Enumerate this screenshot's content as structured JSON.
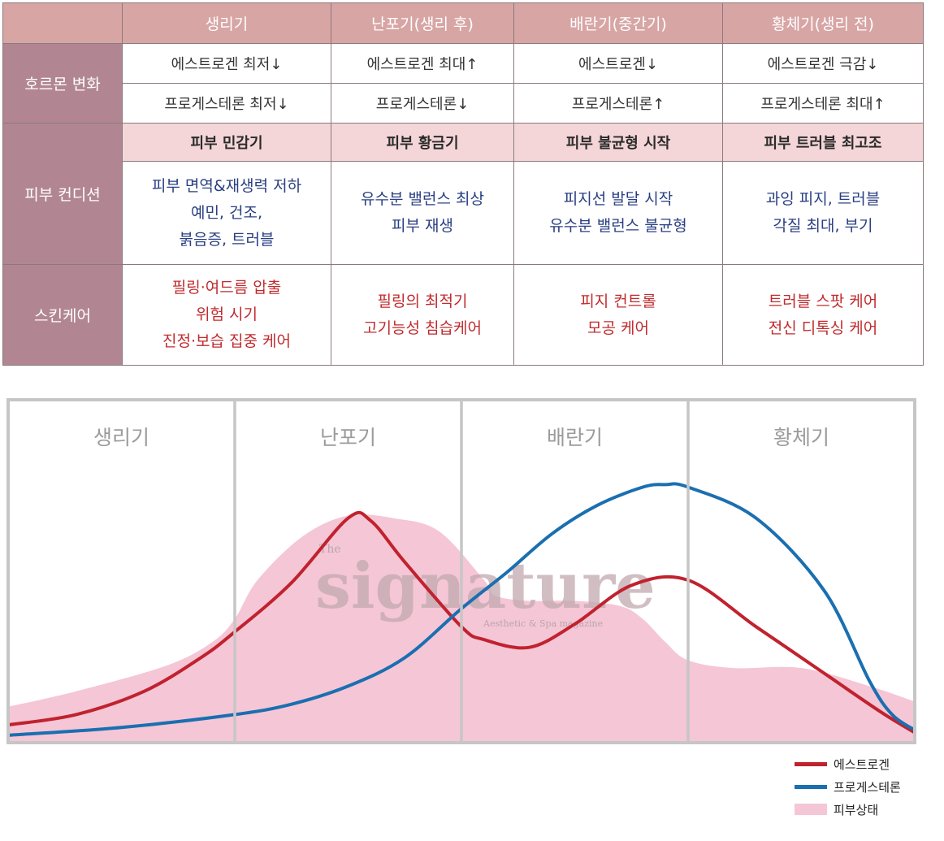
{
  "table": {
    "phase_headers": [
      "생리기",
      "난포기(생리 후)",
      "배란기(중간기)",
      "황체기(생리 전)"
    ],
    "row_labels": {
      "hormone": "호르몬 변화",
      "skin": "피부 컨디션",
      "care": "스킨케어"
    },
    "estrogen_row": [
      "에스트로겐 최저↓",
      "에스트로겐 최대↑",
      "에스트로겐↓",
      "에스트로겐 극감↓"
    ],
    "progesterone_row": [
      "프로게스테론 최저↓",
      "프로게스테론↓",
      "프로게스테론↑",
      "프로게스테론 최대↑"
    ],
    "skin_phase_names": [
      "피부 민감기",
      "피부 황금기",
      "피부 불균형 시작",
      "피부 트러블 최고조"
    ],
    "skin_conditions": [
      [
        "피부 면역&재생력 저하",
        "예민, 건조,",
        "붉음증, 트러블"
      ],
      [
        "유수분 밸런스 최상",
        "피부 재생"
      ],
      [
        "피지선 발달 시작",
        "유수분 밸런스 불균형"
      ],
      [
        "과잉 피지, 트러블",
        "각질 최대, 부기"
      ]
    ],
    "skincare": [
      [
        "필링·여드름 압출",
        "위험 시기",
        "진정·보습 집중 케어"
      ],
      [
        "필링의 최적기",
        "고기능성 침습케어"
      ],
      [
        "피지 컨트롤",
        "모공 케어"
      ],
      [
        "트러블 스팟 케어",
        "전신 디톡싱 케어"
      ]
    ]
  },
  "chart_data": {
    "type": "area",
    "title": "",
    "xlabel": "",
    "ylabel": "",
    "xlim": [
      0,
      4
    ],
    "ylim": [
      0,
      100
    ],
    "phases": [
      "생리기",
      "난포기",
      "배란기",
      "황체기"
    ],
    "grid": true,
    "watermark": {
      "small": "The",
      "big": "signature",
      "sub": "Aesthetic & Spa magazine"
    },
    "series": [
      {
        "name": "에스트로겐",
        "kind": "line",
        "color": "#c0222e",
        "x": [
          0,
          0.3,
          0.6,
          0.85,
          1.0,
          1.25,
          1.5,
          1.6,
          1.75,
          2.0,
          2.1,
          2.3,
          2.5,
          2.75,
          3.0,
          3.3,
          3.6,
          3.85,
          4.0
        ],
        "y": [
          5,
          9,
          18,
          31,
          41,
          60,
          85,
          84,
          68,
          43,
          38,
          35,
          44,
          59,
          61,
          43,
          25,
          10,
          2
        ]
      },
      {
        "name": "프로게스테론",
        "kind": "line",
        "color": "#1a6fb0",
        "x": [
          0,
          0.5,
          1.0,
          1.25,
          1.5,
          1.75,
          2.0,
          2.2,
          2.4,
          2.6,
          2.8,
          2.9,
          3.0,
          3.3,
          3.6,
          3.8,
          3.9,
          4.0
        ],
        "y": [
          1,
          4,
          9,
          13,
          20,
          31,
          50,
          64,
          79,
          90,
          97,
          98,
          97,
          85,
          57,
          22,
          9,
          3
        ]
      },
      {
        "name": "피부상태",
        "kind": "area",
        "color": "#f5c6d6",
        "x": [
          0,
          0.3,
          0.7,
          0.9,
          1.0,
          1.1,
          1.3,
          1.5,
          1.7,
          1.9,
          2.1,
          2.15,
          2.3,
          2.5,
          2.7,
          2.8,
          2.9,
          3.0,
          3.2,
          3.5,
          3.8,
          4.0
        ],
        "y": [
          12,
          18,
          28,
          37,
          46,
          61,
          78,
          86,
          85,
          80,
          61,
          55,
          53,
          53,
          51,
          46,
          37,
          30,
          27,
          27,
          20,
          14
        ]
      }
    ],
    "legend": [
      "에스트로겐",
      "프로게스테론",
      "피부상태"
    ]
  }
}
